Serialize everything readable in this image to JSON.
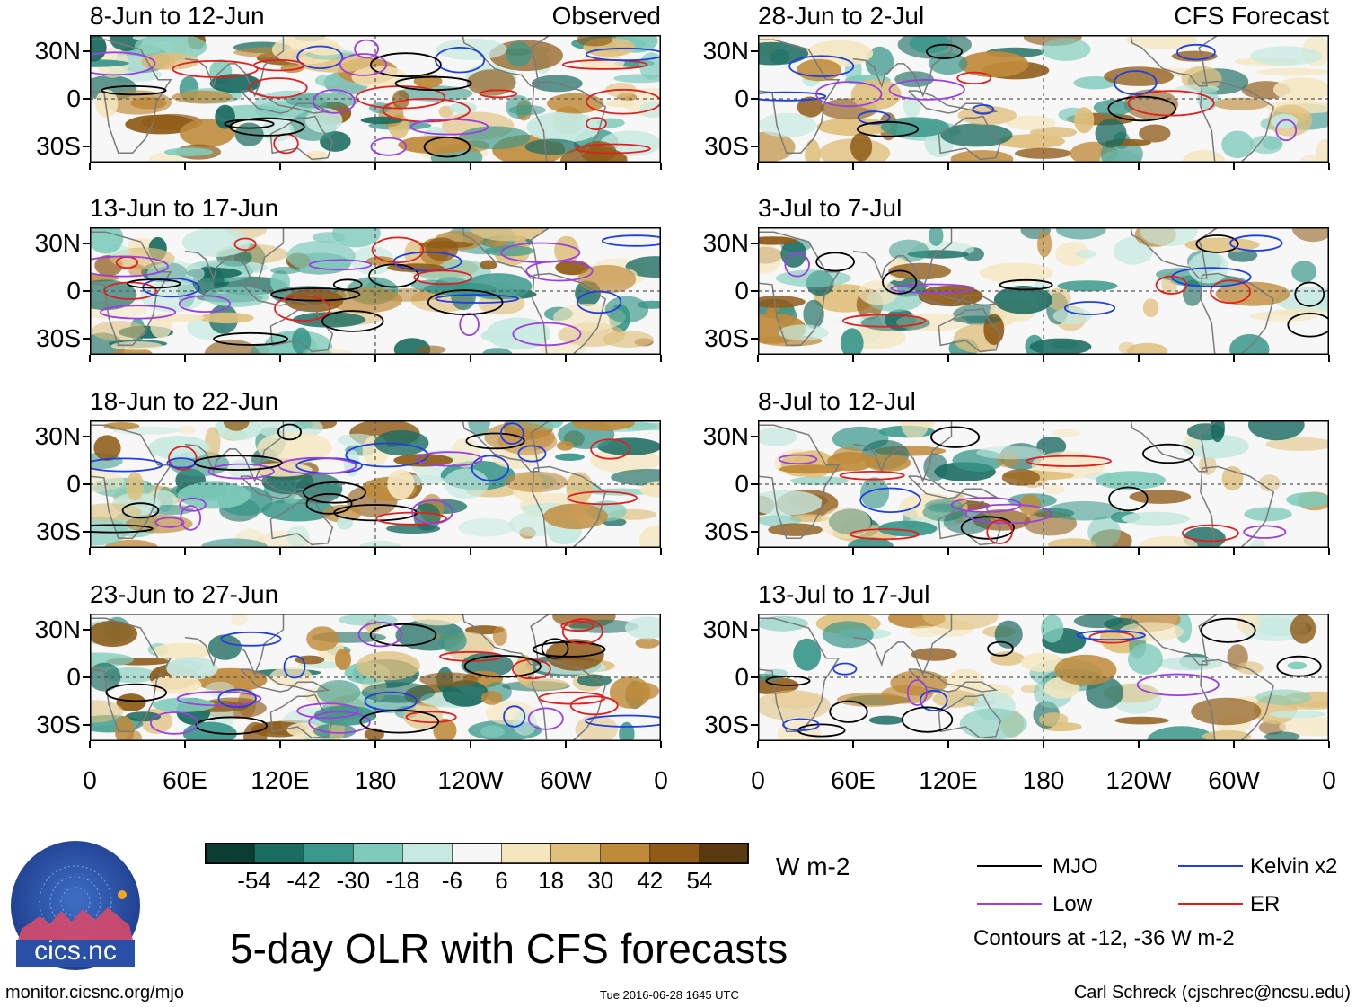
{
  "chart_data": {
    "type": "heatmap",
    "title": "5-day OLR with CFS forecasts",
    "units": "W m-2",
    "observed_label": "Observed",
    "forecast_label": "CFS Forecast",
    "y_ticks": [
      "30N",
      "0",
      "30S"
    ],
    "x_ticks": [
      "0",
      "60E",
      "120E",
      "180",
      "120W",
      "60W",
      "0"
    ],
    "observed_panels": [
      "8-Jun to 12-Jun",
      "13-Jun to 17-Jun",
      "18-Jun to 22-Jun",
      "23-Jun to 27-Jun"
    ],
    "forecast_panels": [
      "28-Jun to 2-Jul",
      "3-Jul to 7-Jul",
      "8-Jul to 12-Jul",
      "13-Jul to 17-Jul"
    ],
    "colorbar": {
      "ticks": [
        "-54",
        "-42",
        "-30",
        "-18",
        "-6",
        "6",
        "18",
        "30",
        "42",
        "54"
      ],
      "colors": [
        "#0b3d33",
        "#1a6b60",
        "#3a978a",
        "#7fcbbb",
        "#c6e9e0",
        "#f7f7f7",
        "#f5e6be",
        "#dfc07d",
        "#bf8a3a",
        "#8f5b17",
        "#5a3a10"
      ]
    },
    "legend": [
      {
        "label": "MJO",
        "color": "#000000"
      },
      {
        "label": "Kelvin x2",
        "color": "#1f3fe0"
      },
      {
        "label": "Low",
        "color": "#9b3fe0"
      },
      {
        "label": "ER",
        "color": "#e01f1f"
      }
    ],
    "contour_note": "Contours at -12, -36 W m-2"
  },
  "footer": {
    "logo_text": "cics.nc",
    "url": "monitor.cicsnc.org/mjo",
    "timestamp": "Tue 2016-06-28 1645 UTC",
    "author": "Carl Schreck (cjschrec@ncsu.edu)"
  }
}
